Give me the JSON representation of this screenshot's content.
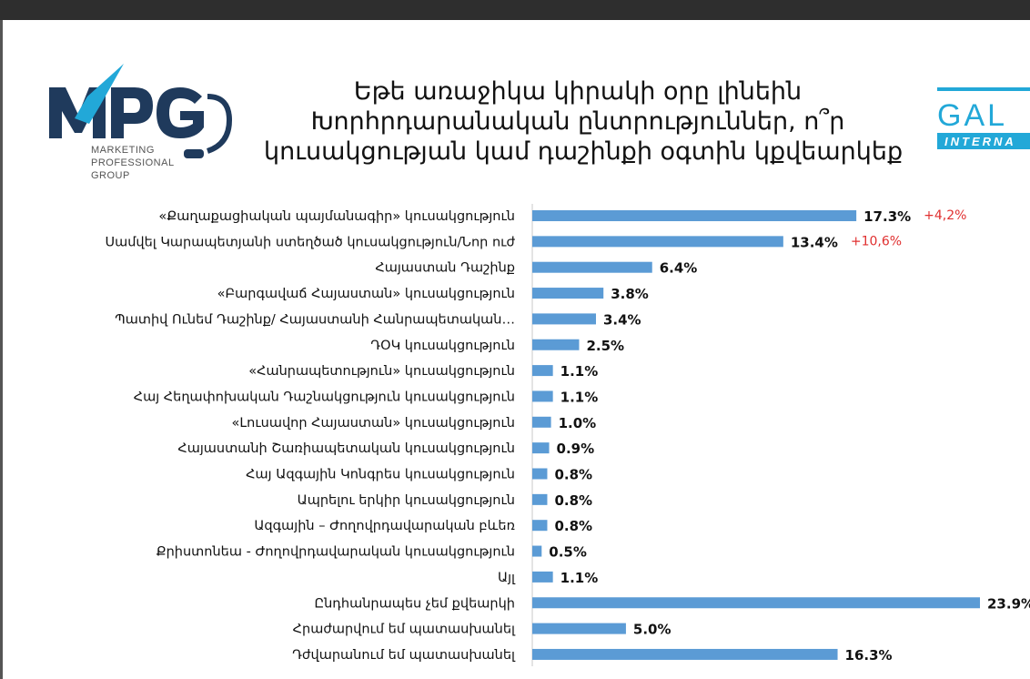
{
  "title_lines": [
    "Եթե առաջիկա կիրակի օրը լինեին",
    "Խորհրդարանական ընտրություններ, ո՞ր",
    "կուսակցության կամ դաշինքի օգտին կքվեարկեք"
  ],
  "logo_left": {
    "name": "MPG",
    "subtitle_lines": [
      "MARKETING",
      "PROFESSIONAL",
      "GROUP"
    ]
  },
  "logo_right": {
    "name": "GAL",
    "subtitle": "INTERNA"
  },
  "colors": {
    "bar": "#5b9bd5",
    "change": "#e03030",
    "logo_navy": "#1f3a5c",
    "logo_cyan": "#22a8d8",
    "topbar": "#2e2e2e"
  },
  "chart_data": {
    "type": "bar",
    "orientation": "horizontal",
    "categories": [
      "«Քաղաքացիական պայմանագիր» կուսակցություն",
      "Սամվել Կարապետյանի ստեղծած կուսակցություն/Նոր ուժ",
      "Հայաստան Դաշինք",
      "«Բարգավաճ Հայաստան» կուսակցություն",
      "Պատիվ Ունեմ Դաշինք/ Հայաստանի Հանրապետական…",
      "ԴՕԿ կուսակցություն",
      "«Հանրապետություն» կուսակցություն",
      "Հայ Հեղափոխական Դաշնակցություն կուսակցություն",
      "«Լուսավոր Հայաստան» կուսակցություն",
      "Հայաստանի Շառիապետական կուսակցություն",
      "Հայ Ազգային Կոնգրես կուսակցություն",
      "Ապրելու երկիր կուսակցություն",
      "Ազգային – Ժողովրդավարական բևեռ",
      "Քրիստոնեա - Ժողովրդավարական կուսակցություն",
      "Այլ",
      "Ընդհանրապես չեմ քվեարկի",
      "Հրաժարվում եմ պատասխանել",
      "Դժվարանում եմ պատասխանել"
    ],
    "values": [
      17.3,
      13.4,
      6.4,
      3.8,
      3.4,
      2.5,
      1.1,
      1.1,
      1.0,
      0.9,
      0.8,
      0.8,
      0.8,
      0.5,
      1.1,
      23.9,
      5.0,
      16.3
    ],
    "value_labels": [
      "17.3%",
      "13.4%",
      "6.4%",
      "3.8%",
      "3.4%",
      "2.5%",
      "1.1%",
      "1.1%",
      "1.0%",
      "0.9%",
      "0.8%",
      "0.8%",
      "0.8%",
      "0.5%",
      "1.1%",
      "23.9%",
      "5.0%",
      "16.3%"
    ],
    "annotations": [
      {
        "category_index": 0,
        "text": "+4,2%"
      },
      {
        "category_index": 1,
        "text": "+10,6%"
      }
    ],
    "xlim": [
      0,
      24
    ],
    "grid": false,
    "legend": "none"
  }
}
